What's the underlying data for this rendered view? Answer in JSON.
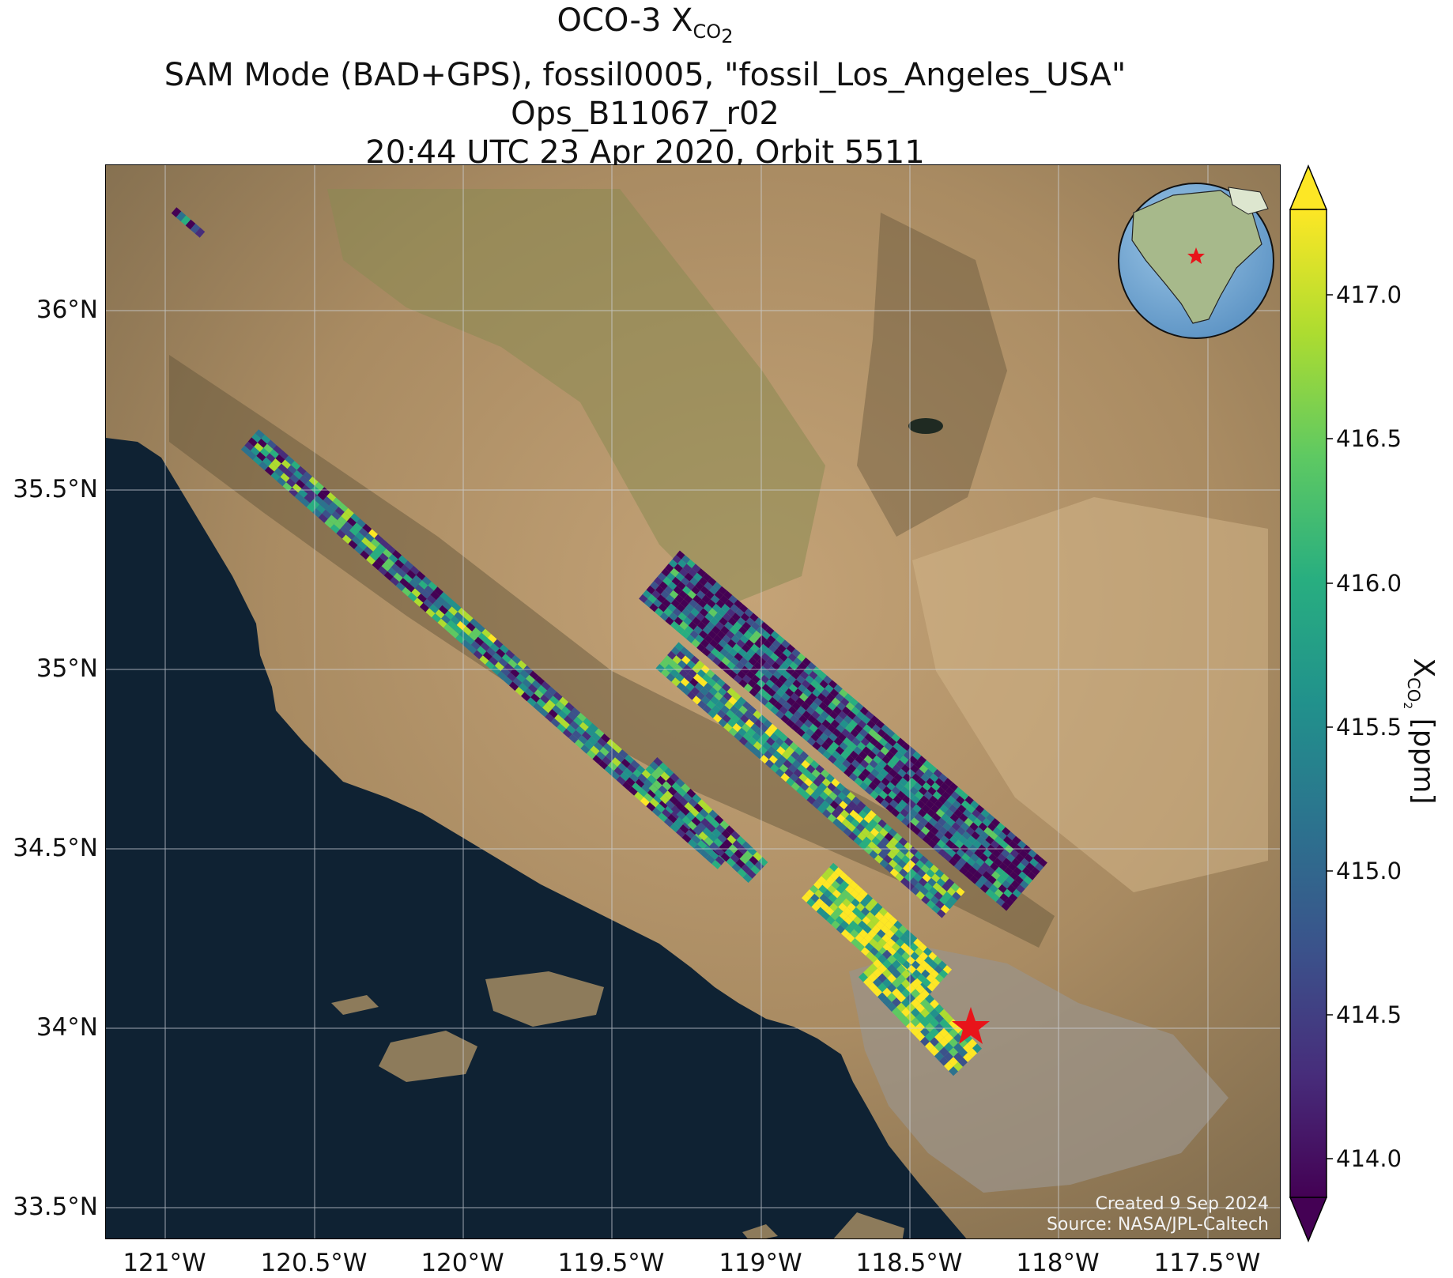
{
  "title": {
    "line1_prefix": "OCO-3 X",
    "line1_sub": "CO",
    "line1_sub2": "2",
    "line2": "SAM Mode (BAD+GPS), fossil0005, \"fossil_Los_Angeles_USA\"",
    "line3": "Ops_B11067_r02",
    "line4": "20:44 UTC 23 Apr 2020, Orbit 5511"
  },
  "map": {
    "lat_ticks": [
      "36°N",
      "35.5°N",
      "35°N",
      "34.5°N",
      "34°N",
      "33.5°N"
    ],
    "lon_ticks": [
      "121°W",
      "120.5°W",
      "120°W",
      "119.5°W",
      "119°W",
      "118.5°W",
      "118°W",
      "117.5°W"
    ],
    "target_marker": "red-star",
    "created": "Created 9 Sep 2024",
    "source": "Source: NASA/JPL-Caltech",
    "colors": {
      "ocean": "#0f2233",
      "land": "#b8966a",
      "marker": "#e8141a"
    }
  },
  "colorbar": {
    "label_prefix": "X",
    "label_sub": "CO",
    "label_sub2": "2",
    "label_suffix": " [ppm]",
    "ticks": [
      "417.0",
      "416.5",
      "416.0",
      "415.5",
      "415.0",
      "414.5",
      "414.0"
    ],
    "range": [
      413.8,
      417.3
    ],
    "extend": "both",
    "colormap": "viridis"
  }
}
